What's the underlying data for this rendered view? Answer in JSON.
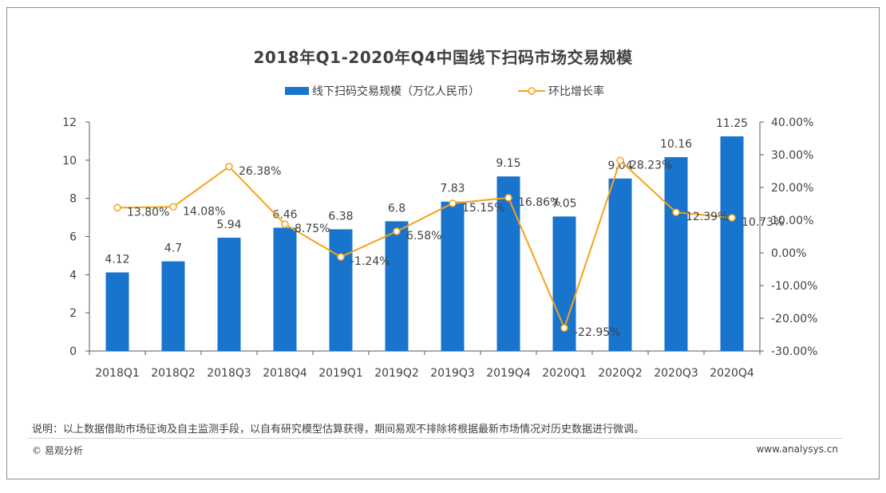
{
  "title": "2018年Q1-2020年Q4中国线下扫码市场交易规模",
  "colors": {
    "bar": "#1874cd",
    "line": "#f5a21b",
    "axis": "#595959"
  },
  "chart_data": {
    "type": "bar",
    "categories": [
      "2018Q1",
      "2018Q2",
      "2018Q3",
      "2018Q4",
      "2019Q1",
      "2019Q2",
      "2019Q3",
      "2019Q4",
      "2020Q1",
      "2020Q2",
      "2020Q3",
      "2020Q4"
    ],
    "series": [
      {
        "name": "线下扫码交易规模（万亿人民币）",
        "type": "bar",
        "axis": "left",
        "values": [
          4.12,
          4.7,
          5.94,
          6.46,
          6.38,
          6.8,
          7.83,
          9.15,
          7.05,
          9.04,
          10.16,
          11.25
        ],
        "labels": [
          "4.12",
          "4.7",
          "5.94",
          "6.46",
          "6.38",
          "6.8",
          "7.83",
          "9.15",
          "7.05",
          "9.04",
          "10.16",
          "11.25"
        ]
      },
      {
        "name": "环比增长率",
        "type": "line",
        "axis": "right",
        "values": [
          13.8,
          14.08,
          26.38,
          8.75,
          -1.24,
          6.58,
          15.15,
          16.86,
          -22.95,
          28.23,
          12.39,
          10.73
        ],
        "labels": [
          "13.80%",
          "14.08%",
          "26.38%",
          "8.75%",
          "-1.24%",
          "6.58%",
          "15.15%",
          "16.86%",
          "-22.95%",
          "28.23%",
          "12.39%",
          "10.73%"
        ]
      }
    ],
    "y_left": {
      "range": [
        0,
        12
      ],
      "ticks": [
        "0",
        "2",
        "4",
        "6",
        "8",
        "10",
        "12"
      ]
    },
    "y_right": {
      "range": [
        -30,
        40
      ],
      "ticks": [
        "-30.00%",
        "-20.00%",
        "-10.00%",
        "0.00%",
        "10.00%",
        "20.00%",
        "30.00%",
        "40.00%"
      ]
    },
    "grid": false,
    "legend": "top-center"
  },
  "footer": {
    "note": "说明：以上数据借助市场征询及自主监测手段，以自有研究模型估算获得，期间易观不排除将根据最新市场情况对历史数据进行微调。",
    "copyright": "© 易观分析",
    "website": "www.analysys.cn"
  }
}
